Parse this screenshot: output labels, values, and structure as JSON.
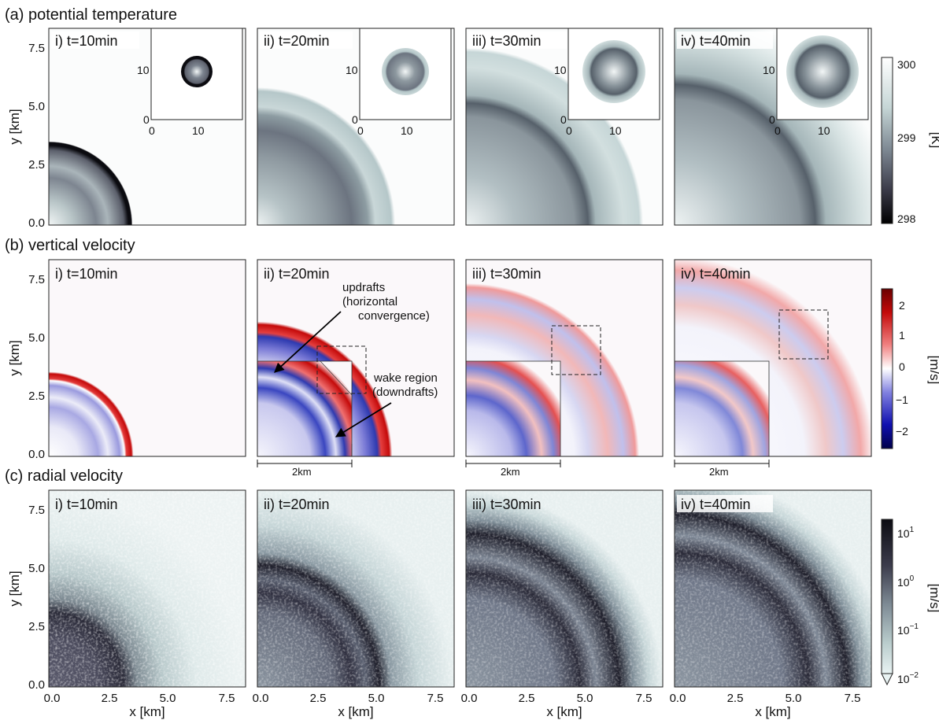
{
  "rows": [
    {
      "title": "(a) potential temperature",
      "panels": [
        "i) t=10min",
        "ii) t=20min",
        "iii) t=30min",
        "iv) t=40min"
      ],
      "colorbar": {
        "ticks": [
          "300",
          "299",
          "298"
        ],
        "unit": "[K]"
      },
      "inset_ticks": {
        "y": [
          "10",
          "0"
        ],
        "x": [
          "0",
          "10"
        ]
      }
    },
    {
      "title": "(b) vertical velocity",
      "panels": [
        "i) t=10min",
        "ii) t=20min",
        "iii) t=30min",
        "iv) t=40min"
      ],
      "colorbar": {
        "ticks": [
          "2",
          "1",
          "0",
          "−1",
          "−2"
        ],
        "unit": "[m/s]"
      },
      "annotations": {
        "updrafts": [
          "updrafts",
          "(horizontal",
          "convergence)"
        ],
        "wake": [
          "wake region",
          "(downdrafts)"
        ],
        "scale": "2km"
      }
    },
    {
      "title": "(c) radial velocity",
      "panels": [
        "i) t=10min",
        "ii) t=20min",
        "iii) t=30min",
        "iv) t=40min"
      ],
      "colorbar": {
        "ticks": [
          "10",
          "10",
          "10",
          "10"
        ],
        "exponents": [
          "1",
          "0",
          "−1",
          "−2"
        ],
        "unit": "[m/s]"
      }
    }
  ],
  "axes": {
    "ylabel": "y [km]",
    "xlabel": "x [km]",
    "yticks": [
      "7.5",
      "5.0",
      "2.5",
      "0.0"
    ],
    "xticks": [
      "0.0",
      "2.5",
      "5.0",
      "7.5"
    ]
  },
  "colors": {
    "theta_warm": "#f4f7f7",
    "theta_cold": "#0b0b10",
    "w_up": "#c40a0a",
    "w_down": "#0a1a8c",
    "radial_fast": "#1a1a24",
    "radial_slow": "#e6f0f0"
  }
}
